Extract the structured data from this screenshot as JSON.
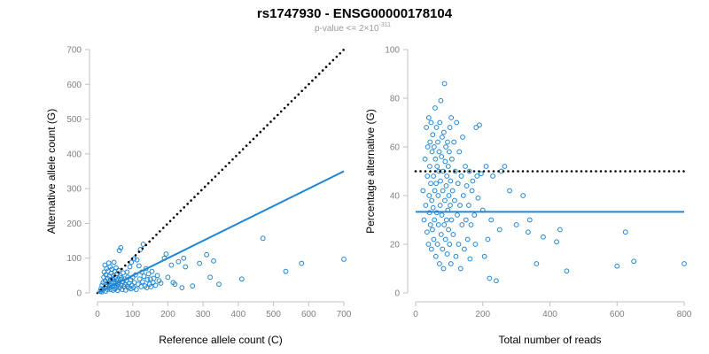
{
  "figure": {
    "title": "rs1747930 - ENSG00000178104",
    "subtitle_prefix": "p-value <= 2",
    "subtitle_times": "×",
    "subtitle_base": "10",
    "subtitle_exponent": "-311"
  },
  "colors": {
    "point": "#1f86d6",
    "fit_line": "#1f86d6",
    "reference_line": "#000000"
  },
  "chart_data": [
    {
      "type": "scatter",
      "title": "",
      "xlabel": "Reference allele count (C)",
      "ylabel": "Alternative allele count (G)",
      "xlim": [
        0,
        700
      ],
      "ylim": [
        0,
        700
      ],
      "x_ticks": [
        "0",
        "100",
        "200",
        "300",
        "400",
        "500",
        "600",
        "700"
      ],
      "y_ticks": [
        "0",
        "100",
        "200",
        "300",
        "400",
        "500",
        "600",
        "700"
      ],
      "grid": false,
      "legend": "none",
      "lines": [
        {
          "style": "dotted",
          "color": "#000000",
          "points": [
            [
              0,
              0
            ],
            [
              700,
              700
            ]
          ]
        },
        {
          "style": "solid",
          "color": "#1f86d6",
          "points": [
            [
              0,
              0
            ],
            [
              700,
              350
            ]
          ]
        }
      ],
      "points": [
        [
          8,
          5
        ],
        [
          10,
          12
        ],
        [
          12,
          3
        ],
        [
          13,
          22
        ],
        [
          15,
          8
        ],
        [
          16,
          30
        ],
        [
          18,
          45
        ],
        [
          19,
          60
        ],
        [
          20,
          14
        ],
        [
          21,
          80
        ],
        [
          22,
          35
        ],
        [
          23,
          5
        ],
        [
          24,
          52
        ],
        [
          25,
          18
        ],
        [
          26,
          70
        ],
        [
          27,
          25
        ],
        [
          28,
          42
        ],
        [
          29,
          10
        ],
        [
          30,
          63
        ],
        [
          31,
          30
        ],
        [
          32,
          86
        ],
        [
          33,
          15
        ],
        [
          34,
          48
        ],
        [
          35,
          22
        ],
        [
          36,
          75
        ],
        [
          37,
          38
        ],
        [
          38,
          10
        ],
        [
          39,
          57
        ],
        [
          40,
          28
        ],
        [
          41,
          68
        ],
        [
          42,
          18
        ],
        [
          43,
          40
        ],
        [
          44,
          8
        ],
        [
          45,
          50
        ],
        [
          46,
          32
        ],
        [
          47,
          88
        ],
        [
          48,
          20
        ],
        [
          49,
          62
        ],
        [
          50,
          12
        ],
        [
          51,
          45
        ],
        [
          52,
          28
        ],
        [
          53,
          72
        ],
        [
          54,
          16
        ],
        [
          55,
          35
        ],
        [
          56,
          55
        ],
        [
          57,
          7
        ],
        [
          58,
          40
        ],
        [
          59,
          24
        ],
        [
          60,
          65
        ],
        [
          61,
          30
        ],
        [
          62,
          122
        ],
        [
          63,
          15
        ],
        [
          64,
          50
        ],
        [
          65,
          38
        ],
        [
          66,
          130
        ],
        [
          67,
          22
        ],
        [
          68,
          44
        ],
        [
          70,
          10
        ],
        [
          72,
          32
        ],
        [
          73,
          58
        ],
        [
          75,
          18
        ],
        [
          76,
          40
        ],
        [
          78,
          25
        ],
        [
          80,
          8
        ],
        [
          82,
          35
        ],
        [
          84,
          60
        ],
        [
          85,
          20
        ],
        [
          86,
          45
        ],
        [
          88,
          14
        ],
        [
          90,
          28
        ],
        [
          92,
          75
        ],
        [
          94,
          38
        ],
        [
          95,
          12
        ],
        [
          96,
          88
        ],
        [
          98,
          22
        ],
        [
          100,
          45
        ],
        [
          102,
          15
        ],
        [
          104,
          98
        ],
        [
          105,
          30
        ],
        [
          108,
          52
        ],
        [
          110,
          10
        ],
        [
          112,
          95
        ],
        [
          115,
          25
        ],
        [
          118,
          78
        ],
        [
          120,
          40
        ],
        [
          122,
          125
        ],
        [
          124,
          18
        ],
        [
          126,
          60
        ],
        [
          128,
          32
        ],
        [
          130,
          140
        ],
        [
          132,
          48
        ],
        [
          135,
          20
        ],
        [
          138,
          70
        ],
        [
          140,
          15
        ],
        [
          142,
          38
        ],
        [
          145,
          55
        ],
        [
          148,
          25
        ],
        [
          150,
          40
        ],
        [
          152,
          18
        ],
        [
          155,
          62
        ],
        [
          158,
          30
        ],
        [
          160,
          42
        ],
        [
          165,
          22
        ],
        [
          170,
          50
        ],
        [
          175,
          35
        ],
        [
          180,
          28
        ],
        [
          190,
          100
        ],
        [
          195,
          112
        ],
        [
          200,
          45
        ],
        [
          210,
          80
        ],
        [
          215,
          30
        ],
        [
          220,
          25
        ],
        [
          230,
          90
        ],
        [
          240,
          15
        ],
        [
          245,
          100
        ],
        [
          250,
          75
        ],
        [
          270,
          20
        ],
        [
          290,
          85
        ],
        [
          310,
          110
        ],
        [
          320,
          45
        ],
        [
          330,
          92
        ],
        [
          345,
          25
        ],
        [
          410,
          40
        ],
        [
          470,
          157
        ],
        [
          535,
          62
        ],
        [
          580,
          85
        ],
        [
          700,
          97
        ]
      ]
    },
    {
      "type": "scatter",
      "title": "",
      "xlabel": "Total number of reads",
      "ylabel": "Percentage alternative (G)",
      "xlim": [
        0,
        800
      ],
      "ylim": [
        0,
        100
      ],
      "x_ticks": [
        "0",
        "200",
        "400",
        "600",
        "800"
      ],
      "y_ticks": [
        "0",
        "20",
        "40",
        "60",
        "80",
        "100"
      ],
      "grid": false,
      "legend": "none",
      "lines": [
        {
          "style": "dotted",
          "color": "#000000",
          "points": [
            [
              0,
              50
            ],
            [
              800,
              50
            ]
          ]
        },
        {
          "style": "solid",
          "color": "#1f86d6",
          "points": [
            [
              0,
              33.3
            ],
            [
              800,
              33.3
            ]
          ]
        }
      ],
      "points": [
        [
          22,
          42
        ],
        [
          25,
          30
        ],
        [
          28,
          55
        ],
        [
          30,
          36
        ],
        [
          32,
          68
        ],
        [
          34,
          25
        ],
        [
          35,
          48
        ],
        [
          36,
          60
        ],
        [
          38,
          20
        ],
        [
          39,
          72
        ],
        [
          40,
          40
        ],
        [
          41,
          33
        ],
        [
          42,
          52
        ],
        [
          43,
          62
        ],
        [
          44,
          28
        ],
        [
          45,
          45
        ],
        [
          46,
          70
        ],
        [
          47,
          18
        ],
        [
          48,
          38
        ],
        [
          49,
          58
        ],
        [
          50,
          26
        ],
        [
          51,
          65
        ],
        [
          52,
          35
        ],
        [
          53,
          48
        ],
        [
          54,
          22
        ],
        [
          55,
          60
        ],
        [
          56,
          30
        ],
        [
          57,
          42
        ],
        [
          58,
          76
        ],
        [
          59,
          55
        ],
        [
          60,
          15
        ],
        [
          61,
          45
        ],
        [
          62,
          68
        ],
        [
          63,
          33
        ],
        [
          64,
          52
        ],
        [
          65,
          20
        ],
        [
          66,
          62
        ],
        [
          67,
          40
        ],
        [
          68,
          28
        ],
        [
          69,
          50
        ],
        [
          70,
          58
        ],
        [
          71,
          12
        ],
        [
          72,
          70
        ],
        [
          73,
          36
        ],
        [
          74,
          46
        ],
        [
          75,
          79
        ],
        [
          76,
          24
        ],
        [
          77,
          56
        ],
        [
          78,
          32
        ],
        [
          79,
          64
        ],
        [
          80,
          18
        ],
        [
          81,
          42
        ],
        [
          82,
          50
        ],
        [
          83,
          10
        ],
        [
          84,
          66
        ],
        [
          85,
          28
        ],
        [
          86,
          86
        ],
        [
          87,
          38
        ],
        [
          88,
          54
        ],
        [
          89,
          22
        ],
        [
          90,
          60
        ],
        [
          91,
          44
        ],
        [
          92,
          30
        ],
        [
          93,
          48
        ],
        [
          94,
          16
        ],
        [
          95,
          62
        ],
        [
          96,
          34
        ],
        [
          97,
          52
        ],
        [
          98,
          26
        ],
        [
          99,
          40
        ],
        [
          100,
          58
        ],
        [
          101,
          20
        ],
        [
          102,
          68
        ],
        [
          103,
          36
        ],
        [
          104,
          46
        ],
        [
          105,
          12
        ],
        [
          106,
          72
        ],
        [
          107,
          30
        ],
        [
          108,
          55
        ],
        [
          110,
          42
        ],
        [
          112,
          24
        ],
        [
          114,
          62
        ],
        [
          116,
          38
        ],
        [
          118,
          50
        ],
        [
          120,
          15
        ],
        [
          122,
          70
        ],
        [
          124,
          32
        ],
        [
          126,
          45
        ],
        [
          128,
          20
        ],
        [
          130,
          58
        ],
        [
          132,
          36
        ],
        [
          134,
          10
        ],
        [
          136,
          48
        ],
        [
          138,
          28
        ],
        [
          140,
          64
        ],
        [
          142,
          40
        ],
        [
          145,
          18
        ],
        [
          148,
          52
        ],
        [
          150,
          30
        ],
        [
          152,
          44
        ],
        [
          155,
          22
        ],
        [
          158,
          36
        ],
        [
          160,
          50
        ],
        [
          162,
          14
        ],
        [
          165,
          28
        ],
        [
          168,
          42
        ],
        [
          170,
          46
        ],
        [
          175,
          32
        ],
        [
          178,
          20
        ],
        [
          180,
          68
        ],
        [
          183,
          48
        ],
        [
          186,
          39
        ],
        [
          190,
          69
        ],
        [
          195,
          49
        ],
        [
          200,
          34
        ],
        [
          205,
          15
        ],
        [
          210,
          52
        ],
        [
          215,
          22
        ],
        [
          220,
          6
        ],
        [
          225,
          30
        ],
        [
          230,
          48
        ],
        [
          240,
          5
        ],
        [
          250,
          26
        ],
        [
          255,
          50
        ],
        [
          265,
          52
        ],
        [
          280,
          42
        ],
        [
          300,
          28
        ],
        [
          320,
          40
        ],
        [
          335,
          25
        ],
        [
          340,
          30
        ],
        [
          360,
          12
        ],
        [
          380,
          23
        ],
        [
          420,
          21
        ],
        [
          430,
          26
        ],
        [
          450,
          9
        ],
        [
          600,
          11
        ],
        [
          625,
          25
        ],
        [
          650,
          13
        ],
        [
          800,
          12
        ]
      ]
    }
  ]
}
